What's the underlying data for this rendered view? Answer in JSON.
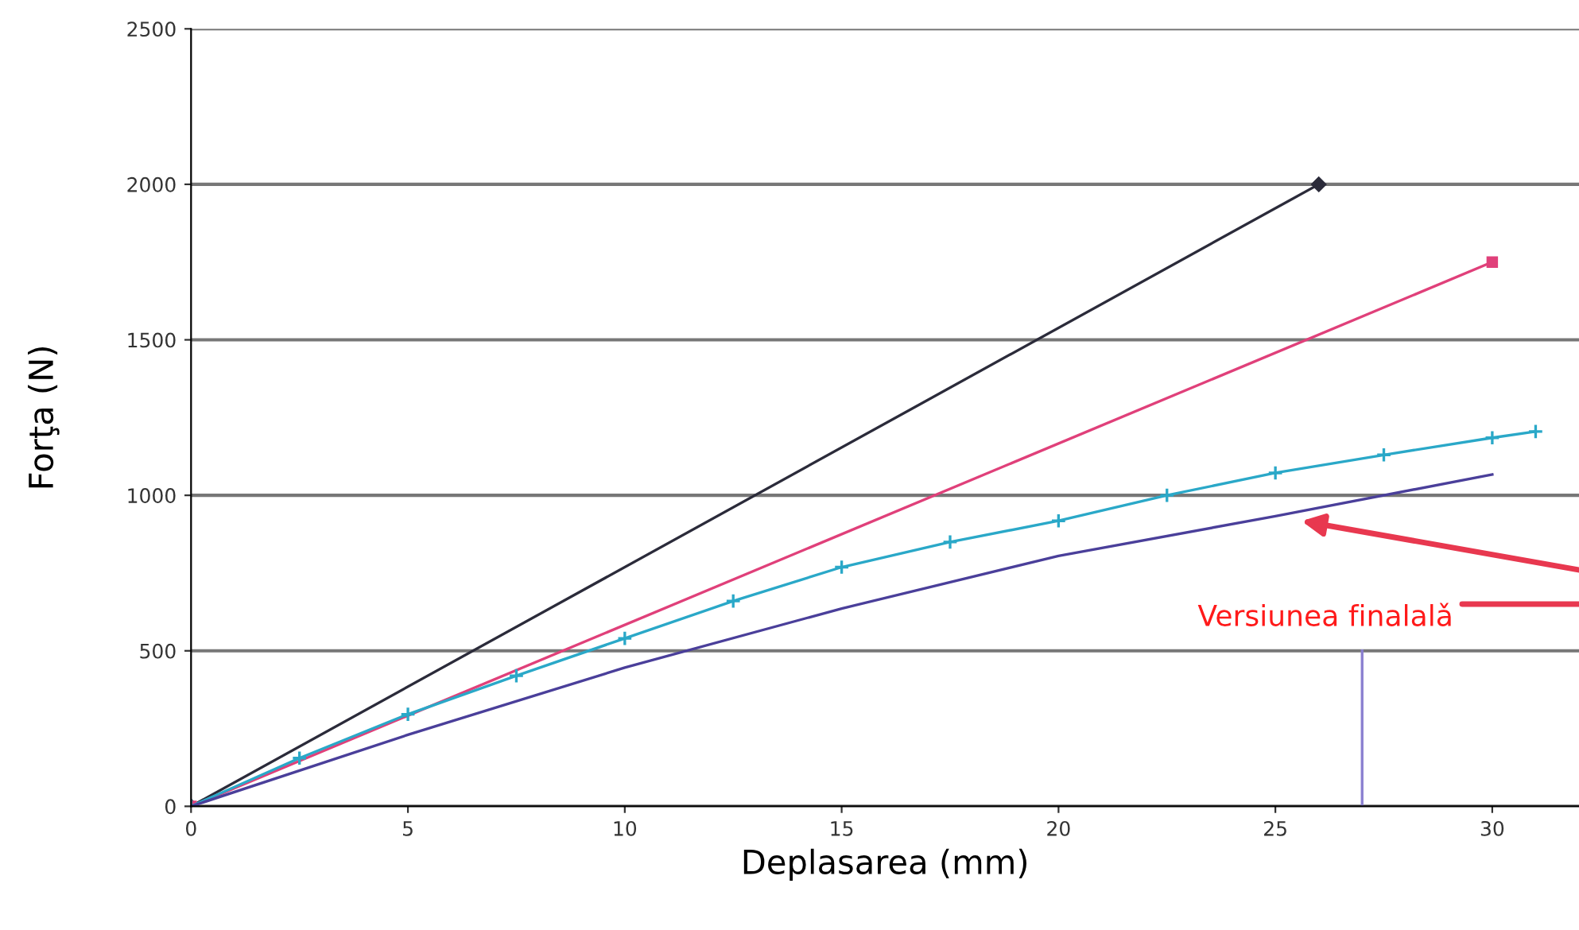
{
  "chart_data": {
    "type": "line",
    "xlabel": "Deplasarea (mm)",
    "ylabel": "Forţa (N)",
    "xlim": [
      0,
      32
    ],
    "ylim": [
      0,
      2500
    ],
    "xticks": [
      0,
      5,
      10,
      15,
      20,
      25,
      30
    ],
    "yticks": [
      0,
      500,
      1000,
      1500,
      2000,
      2500
    ],
    "grid": "y",
    "series": [
      {
        "color": "#2b2b3a",
        "marker": "diamond",
        "x": [
          0,
          26
        ],
        "values": [
          0,
          2000
        ]
      },
      {
        "color": "#e0407a",
        "marker": "square",
        "x": [
          0,
          30
        ],
        "values": [
          0,
          1750
        ]
      },
      {
        "color": "#2aa8c8",
        "marker": "cross",
        "x": [
          0,
          2.5,
          5,
          7.5,
          10,
          12.5,
          15,
          17.5,
          20,
          22.5,
          25,
          27.5,
          30,
          31
        ],
        "values": [
          0,
          155,
          296,
          420,
          540,
          660,
          769,
          850,
          918,
          1000,
          1072,
          1130,
          1185,
          1205
        ]
      },
      {
        "color": "#4a3f9a",
        "marker": "none",
        "x": [
          0,
          5,
          10,
          15,
          20,
          25,
          30
        ],
        "values": [
          0,
          230,
          446,
          636,
          805,
          933,
          1067
        ]
      },
      {
        "color": "#8a7fd0",
        "marker": "none",
        "x": [
          27,
          27
        ],
        "values": [
          0,
          500
        ]
      }
    ],
    "annotations": [
      {
        "text": "Versiunea finalalǎ",
        "x": 25.5,
        "y": 920
      }
    ]
  }
}
